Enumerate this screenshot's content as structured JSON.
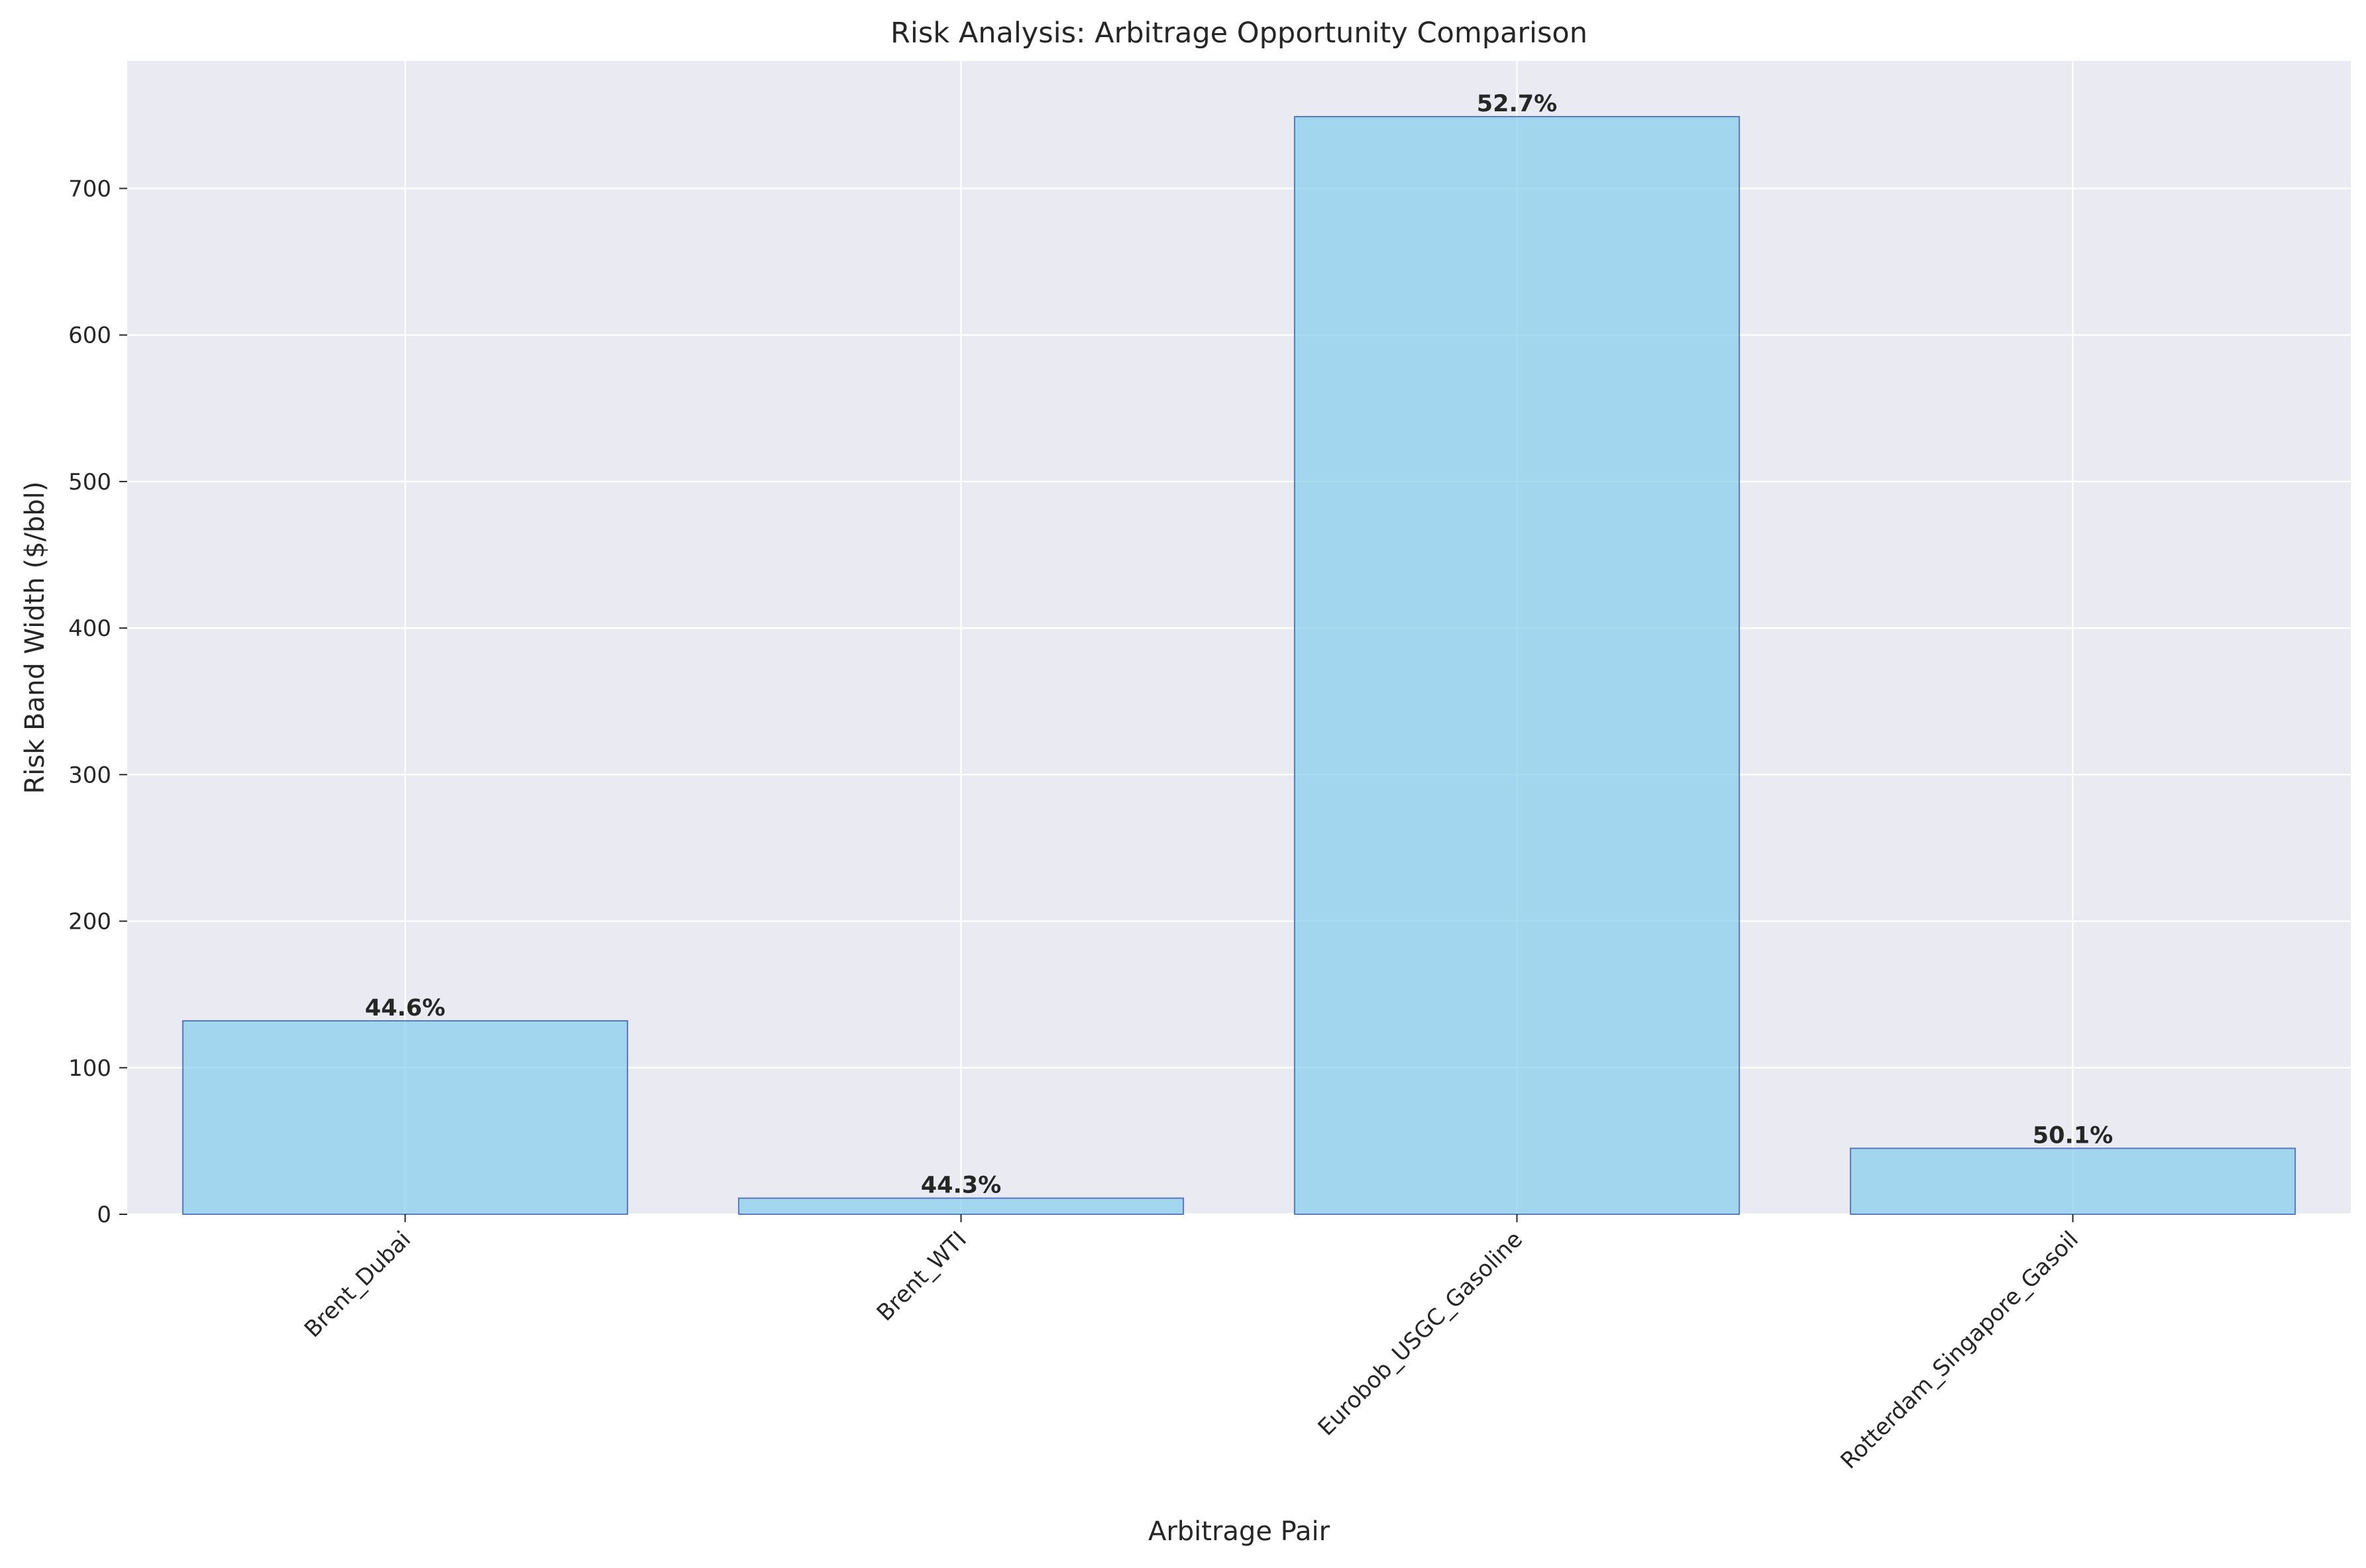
{
  "chart_data": {
    "type": "bar",
    "title": "Risk Analysis: Arbitrage Opportunity Comparison",
    "xlabel": "Arbitrage Pair",
    "ylabel": "Risk Band Width ($/bbl)",
    "categories": [
      "Brent_Dubai",
      "Brent_WTI",
      "Eurobob_USGC_Gasoline",
      "Rotterdam_Singapore_Gasoil"
    ],
    "values": [
      132,
      11,
      749,
      45
    ],
    "bar_labels": [
      "44.6%",
      "44.3%",
      "52.7%",
      "50.1%"
    ],
    "ylim": [
      0,
      787
    ],
    "yticks": [
      0,
      100,
      200,
      300,
      400,
      500,
      600,
      700
    ],
    "ytick_labels": [
      "0",
      "100",
      "200",
      "300",
      "400",
      "500",
      "600",
      "700"
    ],
    "grid": true,
    "colors": {
      "bar_fill": "#87CEEB",
      "bar_edge": "#1F3FA8",
      "plot_background": "#EAEAF2",
      "grid": "#FFFFFF",
      "text": "#262626"
    }
  }
}
